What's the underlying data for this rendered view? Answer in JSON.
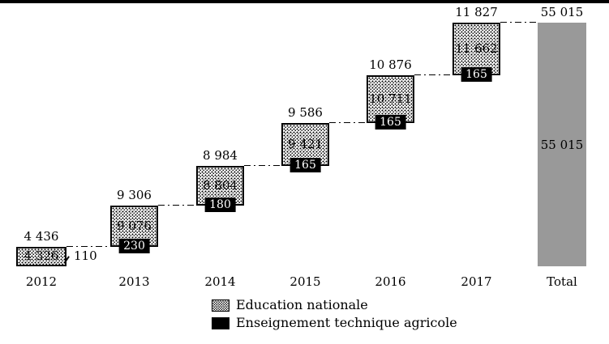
{
  "chart_data": {
    "type": "bar",
    "subtype": "waterfall-stacked",
    "title": "",
    "categories": [
      "2012",
      "2013",
      "2014",
      "2015",
      "2016",
      "2017",
      "Total"
    ],
    "series": [
      {
        "name": "Education nationale",
        "style": "dotted-pattern",
        "values": [
          4326,
          9076,
          8804,
          9421,
          10711,
          11662
        ]
      },
      {
        "name": "Enseignement technique agricole",
        "style": "solid-black",
        "values": [
          110,
          230,
          180,
          165,
          165,
          165
        ]
      }
    ],
    "bars": [
      {
        "category": "2012",
        "total": 4436,
        "total_label": "4 436",
        "education_label": "4 326",
        "agricole_label": "110",
        "agricole_label_position": "right-outside"
      },
      {
        "category": "2013",
        "total": 9306,
        "total_label": "9 306",
        "education_label": "9 076",
        "agricole_label": "230",
        "agricole_label_position": "bottom-box"
      },
      {
        "category": "2014",
        "total": 8984,
        "total_label": "8 984",
        "education_label": "8 804",
        "agricole_label": "180",
        "agricole_label_position": "bottom-box"
      },
      {
        "category": "2015",
        "total": 9586,
        "total_label": "9 586",
        "education_label": "9 421",
        "agricole_label": "165",
        "agricole_label_position": "bottom-box"
      },
      {
        "category": "2016",
        "total": 10876,
        "total_label": "10 876",
        "education_label": "10 711",
        "agricole_label": "165",
        "agricole_label_position": "bottom-box"
      },
      {
        "category": "2017",
        "total": 11827,
        "total_label": "11 827",
        "education_label": "11 662",
        "agricole_label": "165",
        "agricole_label_position": "bottom-box"
      }
    ],
    "total_bar": {
      "category": "Total",
      "value": 55015,
      "top_label": "55 015",
      "inner_label": "55 015"
    },
    "legend": [
      {
        "label": "Education nationale",
        "swatch": "dotted"
      },
      {
        "label": "Enseignement technique agricole",
        "swatch": "black"
      }
    ],
    "ylim": [
      0,
      55015
    ],
    "grid": false,
    "legend_position": "bottom-center",
    "connector_style": "dash-dot"
  },
  "colors": {
    "background": "#ffffff",
    "bar_border": "#000000",
    "total_bar_gray": "#999999",
    "value_box_bg": "#000000",
    "value_box_text": "#ffffff"
  }
}
